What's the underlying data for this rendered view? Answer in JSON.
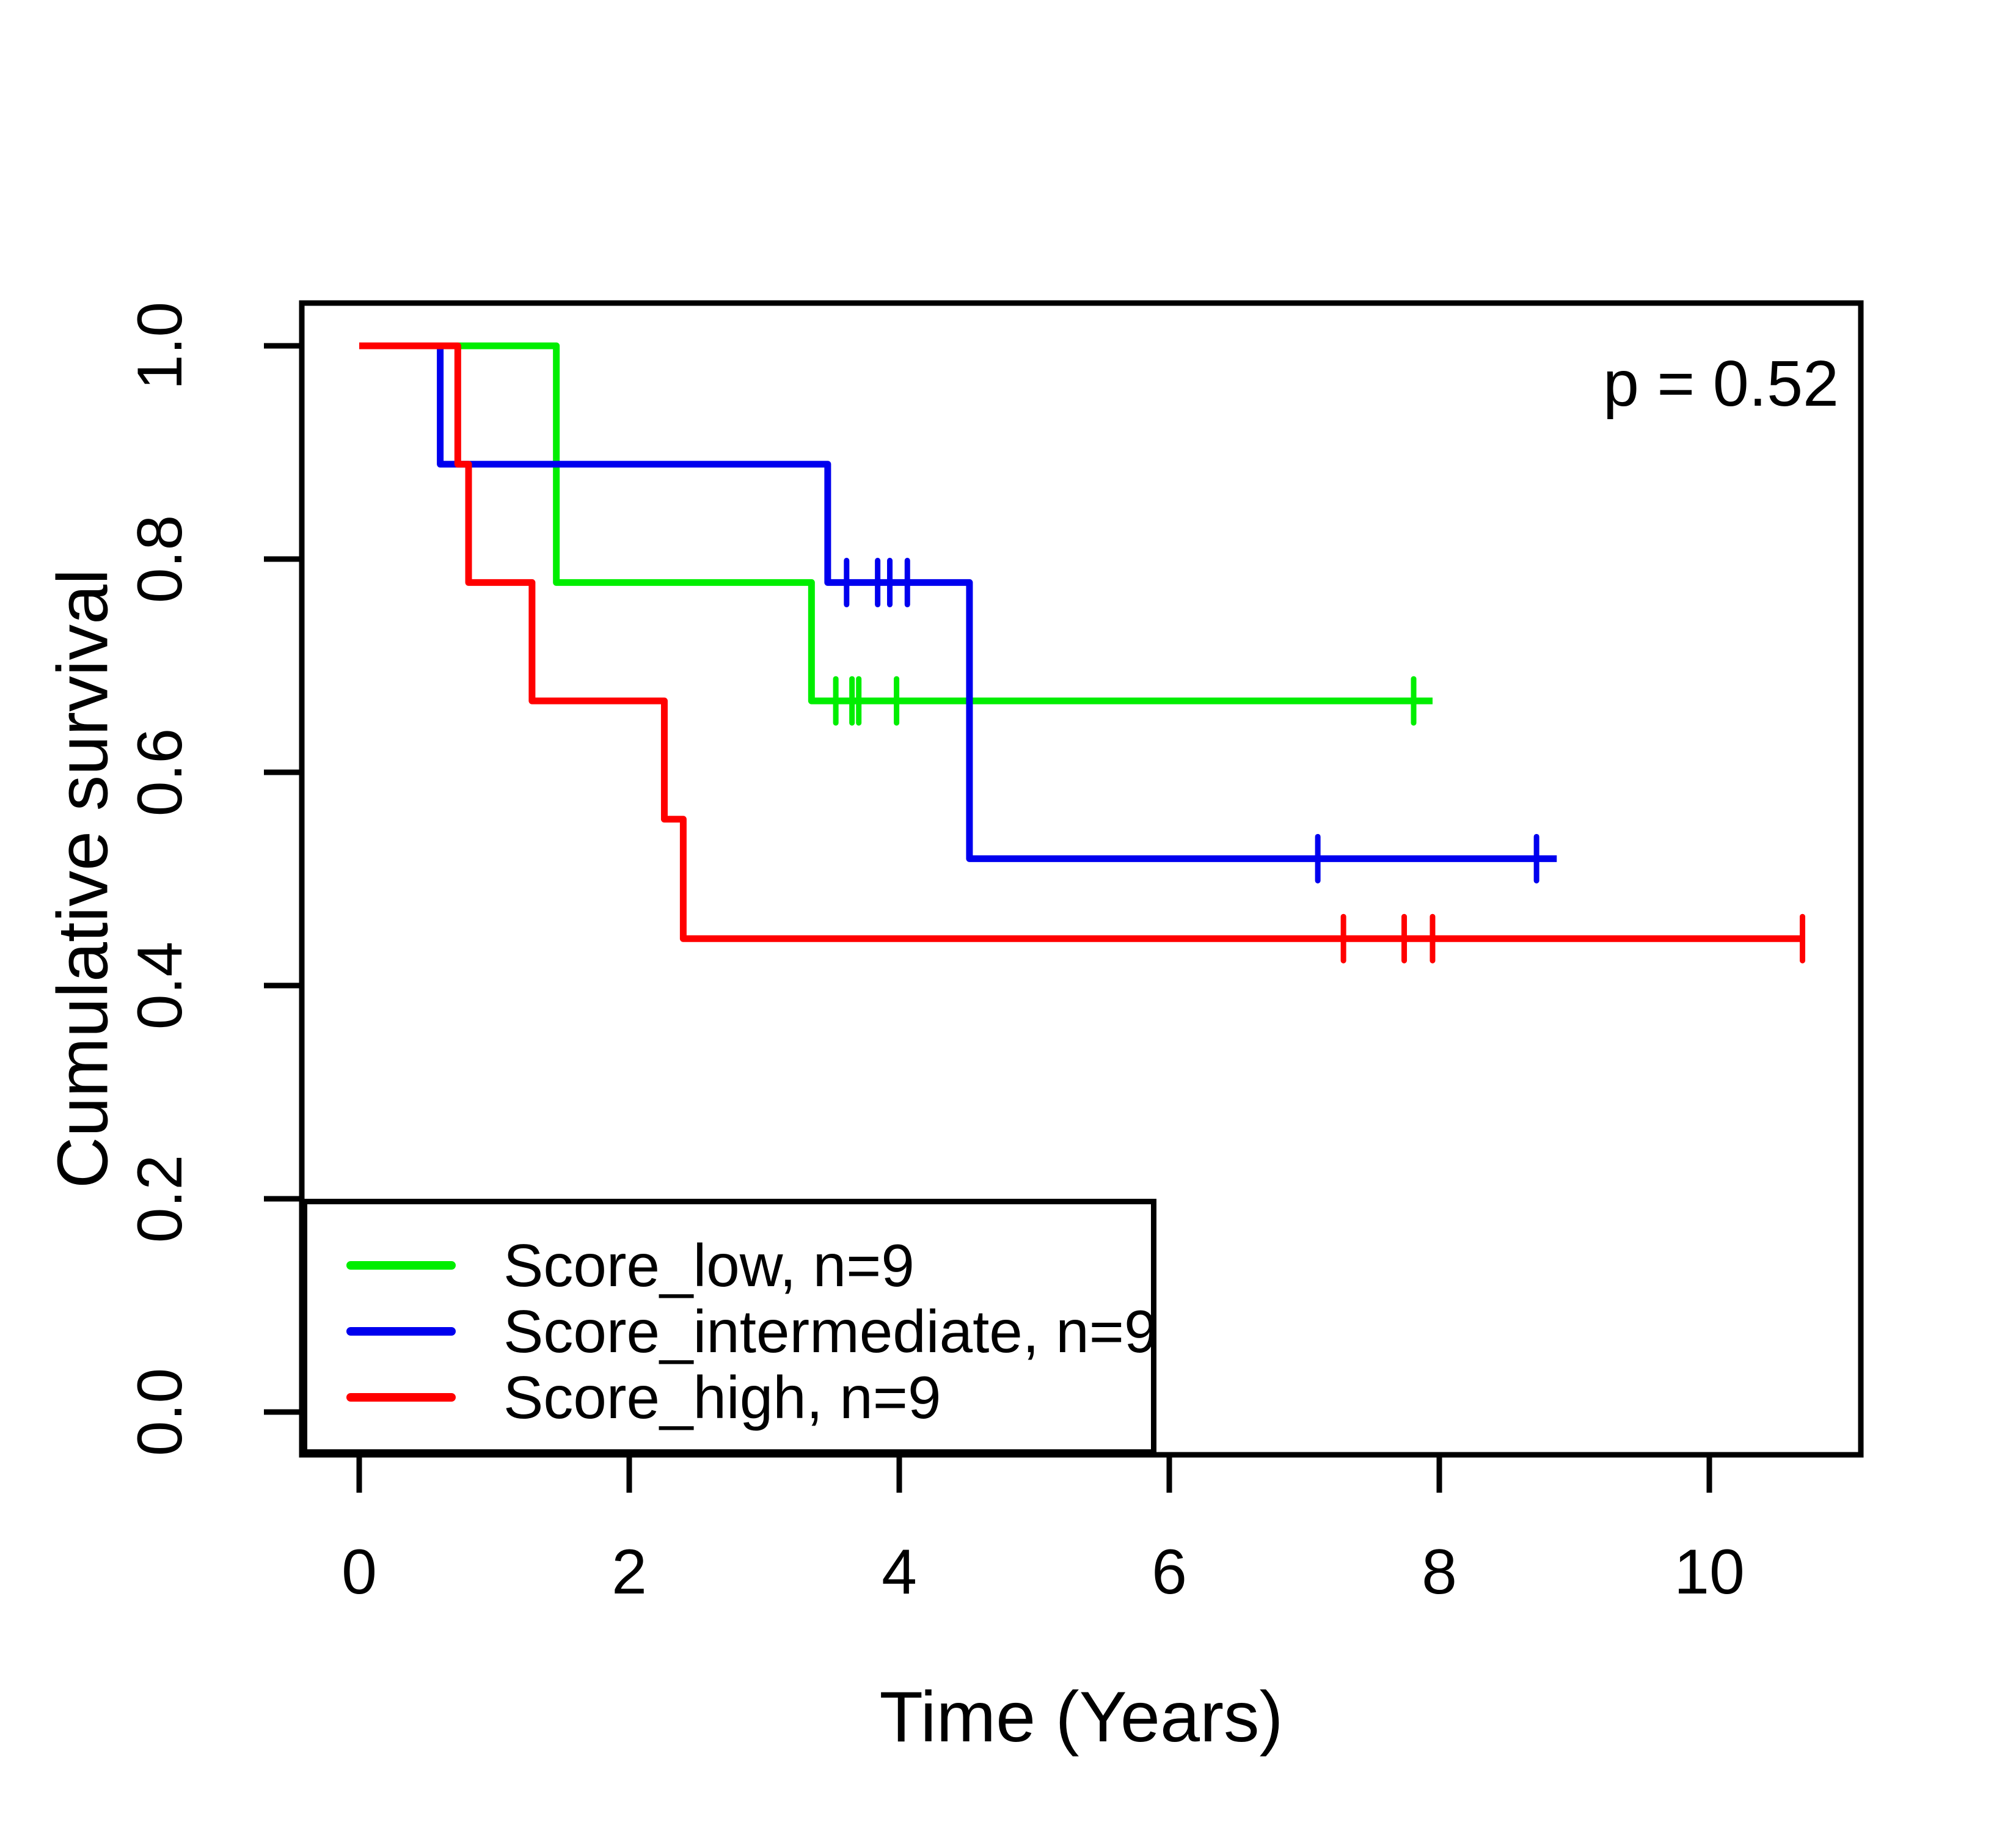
{
  "chart_data": {
    "type": "line",
    "subtype": "kaplan-meier-step",
    "title": "",
    "annotation": "p = 0.52",
    "xlabel": "Time (Years)",
    "ylabel": "Cumulative survival",
    "xlim": [
      0,
      11
    ],
    "ylim": [
      0,
      1
    ],
    "grid": false,
    "legend_position": "bottom-left",
    "x_ticks": [
      {
        "v": 0,
        "label": "0"
      },
      {
        "v": 2,
        "label": "2"
      },
      {
        "v": 4,
        "label": "4"
      },
      {
        "v": 6,
        "label": "6"
      },
      {
        "v": 8,
        "label": "8"
      },
      {
        "v": 10,
        "label": "10"
      }
    ],
    "y_ticks": [
      {
        "v": 0.0,
        "label": "0.0"
      },
      {
        "v": 0.2,
        "label": "0.2"
      },
      {
        "v": 0.4,
        "label": "0.4"
      },
      {
        "v": 0.6,
        "label": "0.6"
      },
      {
        "v": 0.8,
        "label": "0.8"
      },
      {
        "v": 1.0,
        "label": "1.0"
      }
    ],
    "series": [
      {
        "name": "Score_low, n=9",
        "group": "Score_low",
        "n": 9,
        "color": "#00EE00",
        "steps": [
          [
            0,
            1.0
          ],
          [
            1.46,
            0.778
          ],
          [
            3.35,
            0.667
          ]
        ],
        "end_time": 7.95,
        "censor_marks": [
          [
            3.53,
            0.667
          ],
          [
            3.65,
            0.667
          ],
          [
            3.7,
            0.667
          ],
          [
            3.98,
            0.667
          ],
          [
            7.81,
            0.667
          ]
        ]
      },
      {
        "name": "Score_intermediate, n=9",
        "group": "Score_intermediate",
        "n": 9,
        "color": "#0000EE",
        "steps": [
          [
            0,
            1.0
          ],
          [
            0.6,
            0.889
          ],
          [
            3.47,
            0.778
          ],
          [
            4.52,
            0.519
          ]
        ],
        "end_time": 8.87,
        "censor_marks": [
          [
            3.61,
            0.778
          ],
          [
            3.84,
            0.778
          ],
          [
            3.93,
            0.778
          ],
          [
            4.06,
            0.778
          ],
          [
            7.1,
            0.519
          ],
          [
            8.72,
            0.519
          ]
        ]
      },
      {
        "name": "Score_high, n=9",
        "group": "Score_high",
        "n": 9,
        "color": "#FF0000",
        "steps": [
          [
            0,
            1.0
          ],
          [
            0.73,
            0.889
          ],
          [
            0.81,
            0.778
          ],
          [
            1.28,
            0.667
          ],
          [
            2.26,
            0.556
          ],
          [
            2.4,
            0.444
          ]
        ],
        "end_time": 10.69,
        "censor_marks": [
          [
            7.29,
            0.444
          ],
          [
            7.74,
            0.444
          ],
          [
            7.95,
            0.444
          ],
          [
            10.69,
            0.444
          ]
        ]
      }
    ]
  },
  "legend": {
    "items": [
      {
        "label": "Score_low, n=9",
        "color": "#00EE00"
      },
      {
        "label": "Score_intermediate, n=9",
        "color": "#0000EE"
      },
      {
        "label": "Score_high, n=9",
        "color": "#FF0000"
      }
    ]
  }
}
